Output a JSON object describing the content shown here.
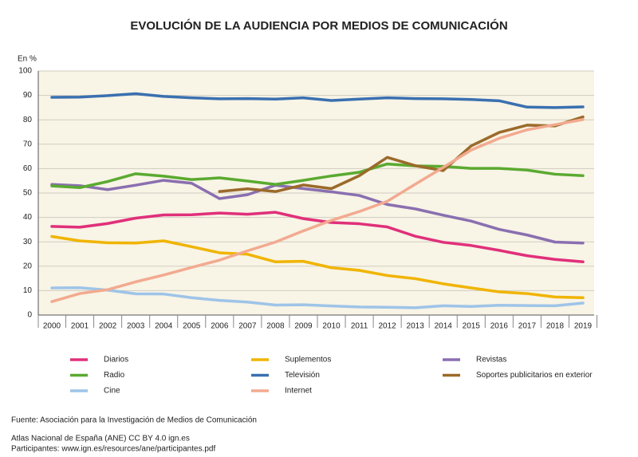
{
  "chart_data": {
    "type": "line",
    "title": "EVOLUCIÓN DE LA AUDIENCIA POR MEDIOS DE COMUNICACIÓN",
    "y_label": "En %",
    "categories": [
      "2000",
      "2001",
      "2002",
      "2003",
      "2004",
      "2005",
      "2006",
      "2007",
      "2008",
      "2009",
      "2010",
      "2011",
      "2012",
      "2013",
      "2014",
      "2015",
      "2016",
      "2017",
      "2018",
      "2019"
    ],
    "ylim": [
      0,
      100
    ],
    "yticks": [
      0,
      10,
      20,
      30,
      40,
      50,
      60,
      70,
      80,
      90,
      100
    ],
    "grid": true,
    "series": [
      {
        "name": "Diarios",
        "color": "#e0307a",
        "values": [
          36.3,
          36,
          37.5,
          39.7,
          41,
          41.1,
          41.8,
          41.3,
          42.1,
          39.5,
          37.9,
          37.4,
          36.1,
          32.3,
          29.8,
          28.5,
          26.5,
          24.3,
          22.8,
          21.8
        ]
      },
      {
        "name": "Suplementos",
        "color": "#f0b400",
        "values": [
          32.2,
          30.4,
          29.6,
          29.5,
          30.4,
          28,
          25.5,
          24.9,
          21.8,
          22,
          19.4,
          18.3,
          16.2,
          14.9,
          12.8,
          11.1,
          9.5,
          8.8,
          7.4,
          7.1
        ]
      },
      {
        "name": "Revistas",
        "color": "#8a6fb0",
        "values": [
          53.5,
          53,
          51.4,
          53.2,
          55.2,
          54,
          47.7,
          49.3,
          53.2,
          51.8,
          50.5,
          49,
          45.3,
          43.5,
          40.9,
          38.5,
          35.1,
          32.8,
          29.9,
          29.5
        ]
      },
      {
        "name": "Radio",
        "color": "#5aaa30",
        "values": [
          52.9,
          52.2,
          54.7,
          57.9,
          56.9,
          55.5,
          56.2,
          54.9,
          53.5,
          55.2,
          57,
          58.5,
          61.9,
          61.1,
          60.9,
          60.1,
          60.1,
          59.4,
          57.7,
          57.1
        ]
      },
      {
        "name": "Televisión",
        "color": "#3a70b0",
        "values": [
          89.2,
          89.3,
          89.9,
          90.7,
          89.6,
          89,
          88.6,
          88.7,
          88.5,
          89,
          87.9,
          88.5,
          89,
          88.7,
          88.6,
          88.3,
          87.8,
          85.2,
          85,
          85.3
        ]
      },
      {
        "name": "Soportes publicitarios en exterior",
        "color": "#9b6a2a",
        "values": [
          null,
          null,
          null,
          null,
          null,
          null,
          50.6,
          51.7,
          50.6,
          53.3,
          51.8,
          57.1,
          64.6,
          61.2,
          59.2,
          69.3,
          74.8,
          77.8,
          77.5,
          81.2
        ]
      },
      {
        "name": "Cine",
        "color": "#9ec4e8",
        "values": [
          11.1,
          11.2,
          10.2,
          8.7,
          8.6,
          7.1,
          6,
          5.3,
          4.1,
          4.2,
          3.7,
          3.3,
          3.2,
          3,
          3.8,
          3.5,
          4,
          3.9,
          3.8,
          4.9
        ]
      },
      {
        "name": "Internet",
        "color": "#f2aa90",
        "values": [
          5.5,
          8.8,
          10.4,
          13.6,
          16.4,
          19.5,
          22.5,
          26.3,
          29.9,
          34.5,
          38.8,
          42.4,
          46.6,
          53.6,
          60.5,
          67.6,
          72.4,
          75.9,
          78,
          80.1
        ]
      }
    ],
    "source": "Fuente: Asociación para la Investigación de Medios de Comunicación",
    "credits": [
      "Atlas Nacional de España (ANE) CC BY 4.0 ign.es",
      "Participantes: www.ign.es/resources/ane/participantes.pdf"
    ]
  }
}
